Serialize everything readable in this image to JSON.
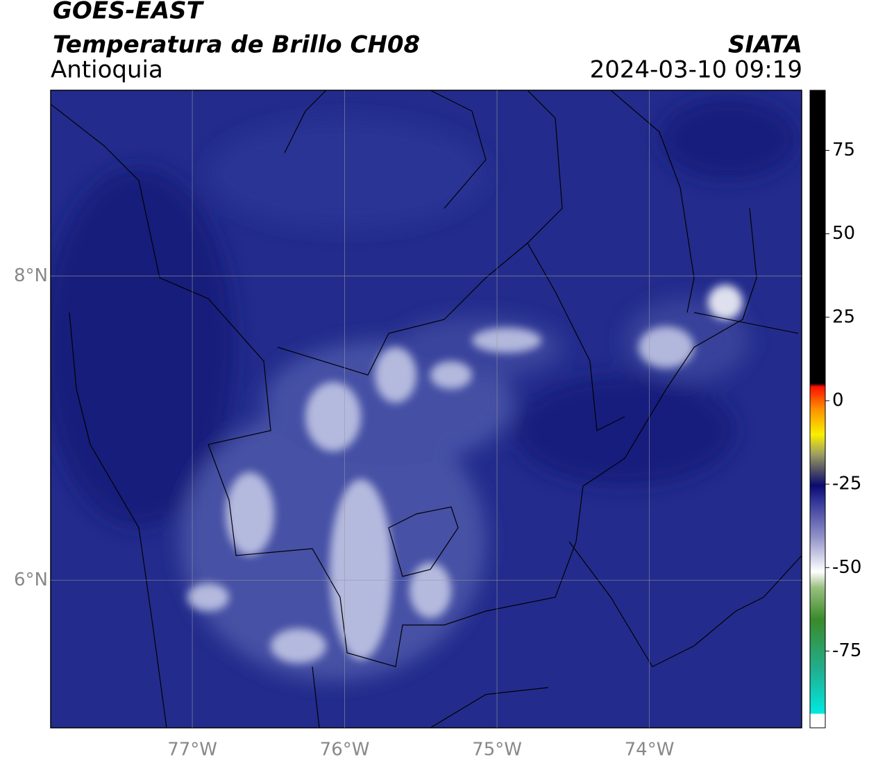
{
  "header": {
    "title": "GOES-EAST",
    "subtitle": "Temperatura de Brillo CH08",
    "region": "Antioquia",
    "source": "SIATA",
    "datetime": "2024-03-10 09:19"
  },
  "map": {
    "xlim": [
      -77.93,
      -73.0
    ],
    "ylim": [
      5.03,
      9.22
    ],
    "xticks": [
      {
        "value": -77,
        "label": "77°W"
      },
      {
        "value": -76,
        "label": "76°W"
      },
      {
        "value": -75,
        "label": "75°W"
      },
      {
        "value": -74,
        "label": "74°W"
      }
    ],
    "yticks": [
      {
        "value": 6,
        "label": "6°N"
      },
      {
        "value": 8,
        "label": "8°N"
      }
    ],
    "grid": true
  },
  "colorbar": {
    "lim": [
      -98,
      93
    ],
    "ticks": [
      -75,
      -50,
      -25,
      0,
      25,
      50,
      75
    ]
  }
}
